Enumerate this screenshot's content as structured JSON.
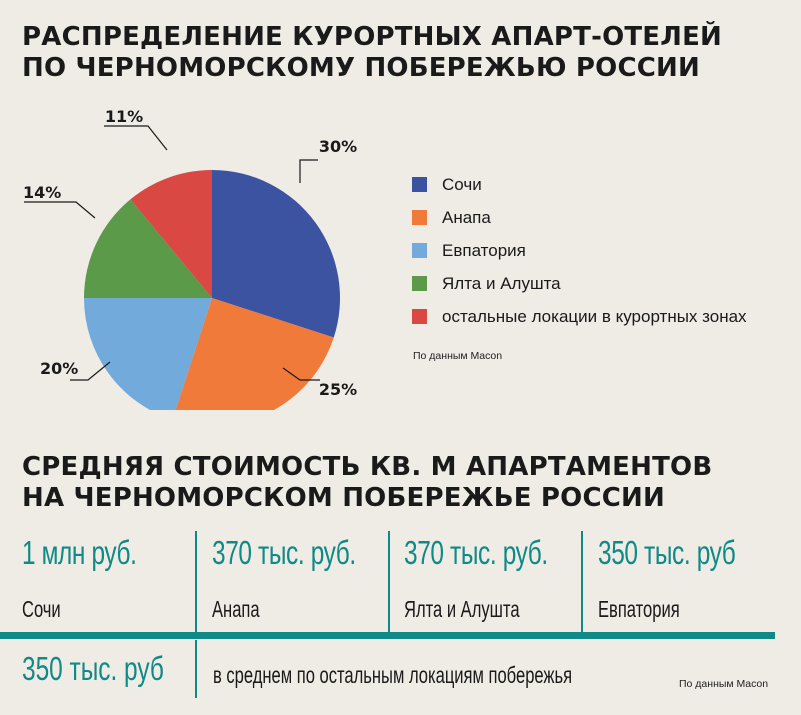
{
  "title_top": [
    "РАСПРЕДЕЛЕНИЕ КУРОРТНЫХ АПАРТ-ОТЕЛЕЙ",
    "ПО ЧЕРНОМОРСКОМУ ПОБЕРЕЖЬЮ РОССИИ"
  ],
  "source": "По данным Macon",
  "chart_data": {
    "type": "pie",
    "slices": [
      {
        "name": "Сочи",
        "value": 30,
        "label": "30%",
        "color": "#3b53a0"
      },
      {
        "name": "Анапа",
        "value": 25,
        "label": "25%",
        "color": "#f07a3a"
      },
      {
        "name": "Евпатория",
        "value": 20,
        "label": "20%",
        "color": "#72aadb"
      },
      {
        "name": "Ялта и Алушта",
        "value": 14,
        "label": "14%",
        "color": "#5b9a48"
      },
      {
        "name": "остальные локации в курортных зонах",
        "value": 11,
        "label": "11%",
        "color": "#d94843"
      }
    ],
    "legend_position": "right"
  },
  "title_bottom": [
    "СРЕДНЯЯ СТОИМОСТЬ КВ. М АПАРТАМЕНТОВ",
    "НА ЧЕРНОМОРСКОМ ПОБЕРЕЖЬЕ РОССИИ"
  ],
  "costs": [
    {
      "value": "1 млн руб.",
      "location": "Сочи"
    },
    {
      "value": "370 тыс. руб.",
      "location": "Анапа"
    },
    {
      "value": "370 тыс. руб.",
      "location": "Ялта и Алушта"
    },
    {
      "value": "350 тыс. руб",
      "location": "Евпатория"
    }
  ],
  "average": {
    "value": "350 тыс. руб",
    "label": "в среднем по остальным локациям побережья"
  },
  "accent_color": "#0f8a86"
}
